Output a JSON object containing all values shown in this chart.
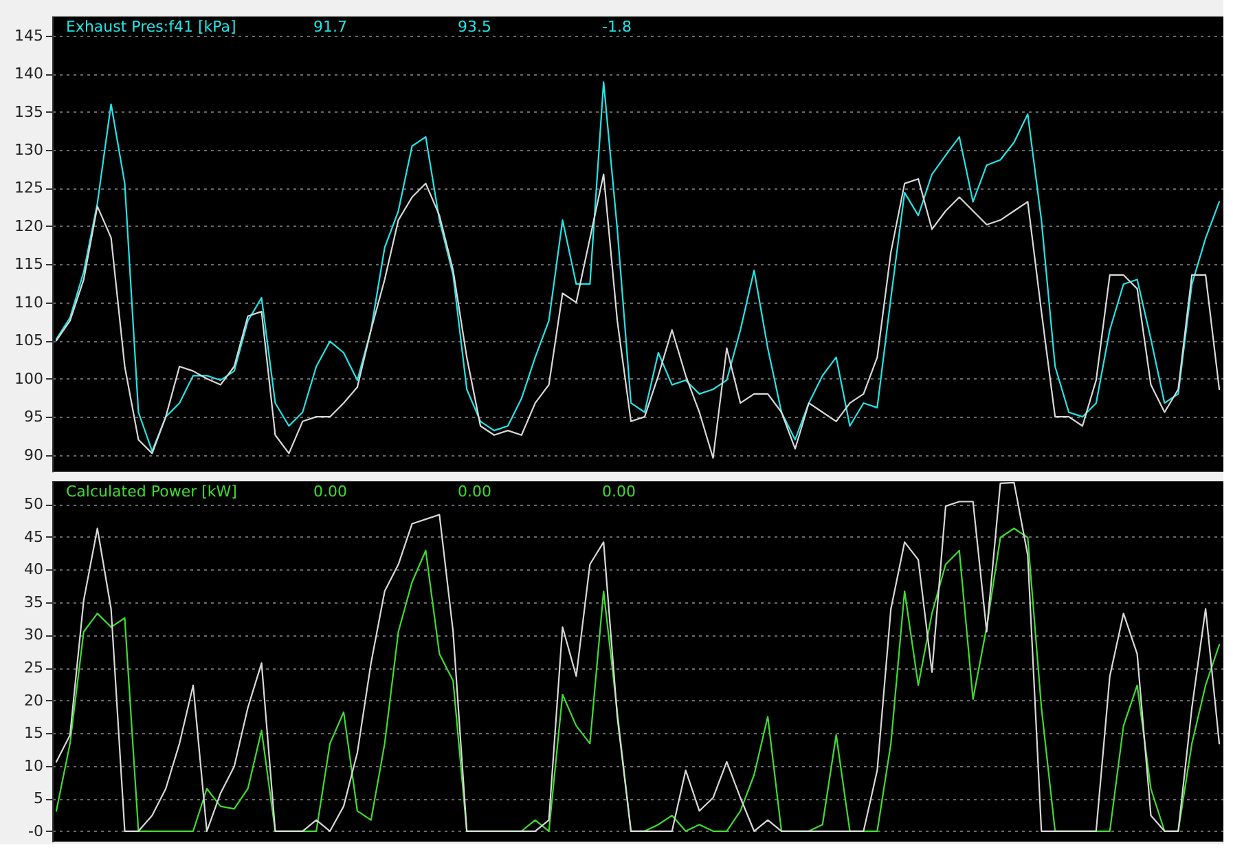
{
  "chart_data": [
    {
      "type": "line",
      "title": "Exhaust Pres:f41 [kPa]",
      "annotations": [
        "91.7",
        "93.5",
        "-1.8"
      ],
      "categories": [
        null,
        null,
        null,
        null,
        null,
        null,
        null,
        null,
        null,
        null,
        null,
        null,
        null,
        null,
        null,
        null,
        null,
        null,
        null,
        null,
        null,
        null,
        null,
        null,
        null,
        null,
        null,
        null,
        null,
        null,
        null,
        null,
        null,
        null,
        null,
        null,
        null,
        null,
        null,
        null,
        null,
        null,
        null,
        null,
        null,
        null,
        null,
        null,
        null,
        null,
        null,
        null,
        null,
        null,
        null,
        null,
        null,
        null,
        null,
        null,
        null,
        null,
        null,
        null,
        null,
        null,
        null,
        null,
        null,
        null,
        null,
        null,
        null,
        null,
        null,
        null,
        null,
        null,
        null,
        null,
        null,
        null,
        null,
        null,
        null,
        null
      ],
      "series": [
        {
          "color": "#22e5e8",
          "values": [
            105.2,
            108,
            114,
            123,
            136,
            125.6,
            95.6,
            90.5,
            95,
            96.8,
            100.4,
            100.4,
            99.8,
            101,
            107.6,
            110.6,
            96.8,
            93.8,
            95.6,
            101.6,
            104.9,
            103.4,
            99.8,
            106.4,
            117.2,
            122,
            130.5,
            131.7,
            120.8,
            113.6,
            98.6,
            94.4,
            93.2,
            93.8,
            97.4,
            102.8,
            107.6,
            120.8,
            112.4,
            112.4,
            138.9,
            119.6,
            96.8,
            95.6,
            103.4,
            99.2,
            99.8,
            98,
            98.6,
            99.8,
            106.4,
            114.2,
            104,
            95.6,
            92,
            96.8,
            100.4,
            102.8,
            93.8,
            96.8,
            96.2,
            110.6,
            124.4,
            121.4,
            126.8,
            129.3,
            131.7,
            123.2,
            128,
            128.7,
            131,
            134.7,
            120.8,
            101.6,
            95.6,
            95,
            96.8,
            106.4,
            112.4,
            113,
            105.2,
            96.8,
            98,
            112.4,
            118.4,
            123.2
          ]
        },
        {
          "color": "#d8d8d8",
          "values": [
            105,
            107.6,
            113,
            122.6,
            118.5,
            101.6,
            92,
            90.2,
            95,
            101.6,
            101,
            100,
            99.2,
            101.6,
            108.2,
            108.8,
            92.6,
            90.2,
            94.4,
            95,
            95,
            96.8,
            98.9,
            106.4,
            113,
            120.8,
            123.8,
            125.6,
            121.4,
            114.2,
            102.8,
            93.8,
            92.6,
            93.2,
            92.6,
            96.8,
            99.2,
            111.2,
            110,
            118.4,
            126.8,
            107.6,
            94.4,
            95,
            100.4,
            106.4,
            100.4,
            95.6,
            89.6,
            104,
            96.8,
            98,
            98,
            95.6,
            90.8,
            96.8,
            95.6,
            94.4,
            96.8,
            98,
            102.8,
            116.6,
            125.6,
            126.2,
            119.6,
            122,
            123.8,
            122,
            120.2,
            120.8,
            122,
            123.2,
            108.8,
            95,
            95,
            93.8,
            99.8,
            113.6,
            113.6,
            111.8,
            99.2,
            95.6,
            98.6,
            113.6,
            113.6,
            98.6
          ]
        }
      ],
      "ylim": [
        87.8,
        147.5
      ],
      "yticks": [
        90,
        95,
        100,
        105,
        110,
        115,
        120,
        125,
        130,
        135,
        140,
        145
      ],
      "grid": "y",
      "tick_labels": "y",
      "marker": "none",
      "line_style": "solid"
    },
    {
      "type": "line",
      "title": "Calculated Power [kW]",
      "annotations": [
        "0.00",
        "0.00",
        "0.00"
      ],
      "categories": [
        null,
        null,
        null,
        null,
        null,
        null,
        null,
        null,
        null,
        null,
        null,
        null,
        null,
        null,
        null,
        null,
        null,
        null,
        null,
        null,
        null,
        null,
        null,
        null,
        null,
        null,
        null,
        null,
        null,
        null,
        null,
        null,
        null,
        null,
        null,
        null,
        null,
        null,
        null,
        null,
        null,
        null,
        null,
        null,
        null,
        null,
        null,
        null,
        null,
        null,
        null,
        null,
        null,
        null,
        null,
        null,
        null,
        null,
        null,
        null,
        null,
        null,
        null,
        null,
        null,
        null,
        null,
        null,
        null,
        null,
        null,
        null,
        null,
        null,
        null,
        null,
        null,
        null,
        null,
        null,
        null,
        null,
        null,
        null,
        null,
        null
      ],
      "series": [
        {
          "color": "#3fdc2f",
          "values": [
            3.1,
            13.4,
            30.5,
            33.3,
            31.2,
            32.6,
            0,
            0,
            0,
            0,
            0,
            6.5,
            3.8,
            3.4,
            6.5,
            15.4,
            0,
            0,
            0,
            0,
            13.4,
            18.2,
            3.1,
            1.7,
            13.4,
            30.5,
            38.1,
            42.9,
            27.1,
            23,
            0,
            0,
            0,
            0,
            0,
            1.7,
            0,
            20.9,
            16.1,
            13.4,
            36.7,
            18.2,
            0,
            0,
            1,
            2.4,
            0,
            1,
            0,
            0,
            3.1,
            8.6,
            17.5,
            0,
            0,
            0,
            1,
            14.7,
            0,
            0,
            0,
            13.4,
            36.7,
            22.3,
            33.3,
            40.8,
            42.9,
            20.2,
            31.2,
            44.9,
            46.3,
            44.9,
            18.9,
            0,
            0,
            0,
            0,
            0,
            16.1,
            22.3,
            6.5,
            0,
            0,
            13.4,
            22.3,
            28.5
          ]
        },
        {
          "color": "#d8d8d8",
          "values": [
            10.6,
            14.7,
            35.3,
            46.3,
            34,
            0,
            0,
            2.4,
            6.5,
            13.4,
            22.3,
            0,
            5.8,
            9.9,
            18.9,
            25.7,
            0,
            0,
            0,
            1.7,
            0,
            3.8,
            12,
            25.7,
            36.7,
            40.8,
            47,
            47.7,
            48.4,
            30.5,
            0,
            0,
            0,
            0,
            0,
            0,
            1.7,
            31.2,
            23.7,
            40.8,
            44.2,
            17.5,
            0,
            0,
            0,
            0,
            9.3,
            3.1,
            5.1,
            10.6,
            5.1,
            0,
            1.7,
            0,
            0,
            0,
            0,
            0,
            0,
            0,
            9.3,
            34,
            44.2,
            41.5,
            24.3,
            49.7,
            50.4,
            50.4,
            30.5,
            53.2,
            53.3,
            42.2,
            0,
            0,
            0,
            0,
            0,
            23.7,
            33.3,
            27.1,
            2.4,
            0,
            0,
            18.9,
            34,
            13.4
          ]
        }
      ],
      "ylim": [
        -1.6,
        53.5
      ],
      "yticks": [
        {
          "value": 0,
          "label": "-0"
        },
        5,
        10,
        15,
        20,
        25,
        30,
        35,
        40,
        45,
        50
      ],
      "grid": "y",
      "tick_labels": "y",
      "marker": "none",
      "line_style": "solid"
    }
  ]
}
